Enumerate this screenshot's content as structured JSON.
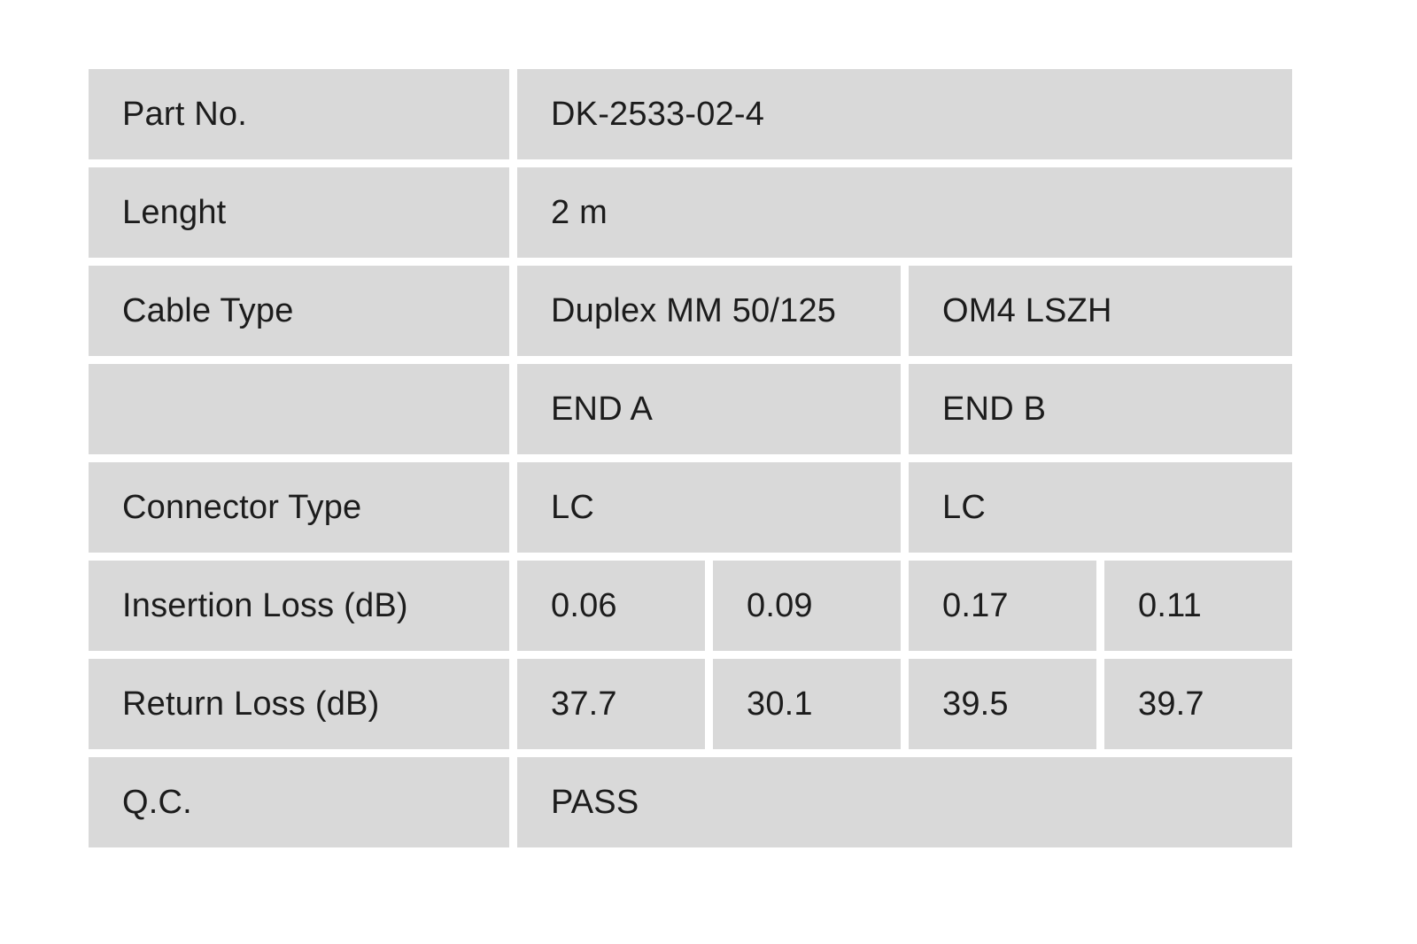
{
  "page": {
    "background_color": "#ffffff",
    "cell_background_color": "#d9d9d9",
    "text_color": "#1c1c1c"
  },
  "table": {
    "rows": [
      {
        "label": "Part No.",
        "cells": [
          {
            "text": "DK-2533-02-4",
            "span": 4
          }
        ]
      },
      {
        "label": "Lenght",
        "cells": [
          {
            "text": "2 m",
            "span": 4
          }
        ]
      },
      {
        "label": "Cable Type",
        "cells": [
          {
            "text": "Duplex MM 50/125",
            "span": 2
          },
          {
            "text": "OM4 LSZH",
            "span": 2
          }
        ]
      },
      {
        "label": "",
        "cells": [
          {
            "text": "END A",
            "span": 2
          },
          {
            "text": "END B",
            "span": 2
          }
        ]
      },
      {
        "label": "Connector Type",
        "cells": [
          {
            "text": "LC",
            "span": 2
          },
          {
            "text": "LC",
            "span": 2
          }
        ]
      },
      {
        "label": "Insertion Loss (dB)",
        "cells": [
          {
            "text": "0.06",
            "span": 1
          },
          {
            "text": "0.09",
            "span": 1
          },
          {
            "text": "0.17",
            "span": 1
          },
          {
            "text": "0.11",
            "span": 1
          }
        ]
      },
      {
        "label": "Return Loss (dB)",
        "cells": [
          {
            "text": "37.7",
            "span": 1
          },
          {
            "text": "30.1",
            "span": 1
          },
          {
            "text": "39.5",
            "span": 1
          },
          {
            "text": "39.7",
            "span": 1
          }
        ]
      },
      {
        "label": "Q.C.",
        "cells": [
          {
            "text": "PASS",
            "span": 4
          }
        ]
      }
    ]
  }
}
